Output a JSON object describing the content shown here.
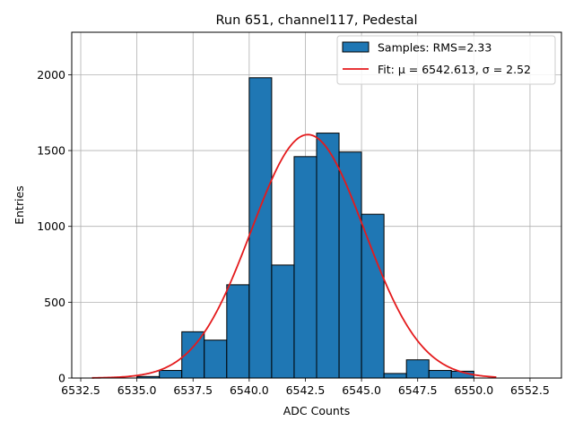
{
  "chart_data": {
    "type": "bar",
    "title": "Run 651, channel117, Pedestal",
    "xlabel": "ADC Counts",
    "ylabel": "Entries",
    "xlim": [
      6532.1,
      6553.9
    ],
    "ylim": [
      0,
      2280
    ],
    "xticks": [
      6532.5,
      6535.0,
      6537.5,
      6540.0,
      6542.5,
      6545.0,
      6547.5,
      6550.0,
      6552.5
    ],
    "xtick_labels": [
      "6532.5",
      "6535.0",
      "6537.5",
      "6540.0",
      "6542.5",
      "6545.0",
      "6547.5",
      "6550.0",
      "6552.5"
    ],
    "yticks": [
      0,
      500,
      1000,
      1500,
      2000
    ],
    "ytick_labels": [
      "0",
      "500",
      "1000",
      "1500",
      "2000"
    ],
    "grid": true,
    "legend": "top-right",
    "histogram": {
      "name": "Samples: RMS=2.33",
      "color": "#1f77b4",
      "edgecolor": "#000000",
      "bin_edges": [
        6535,
        6536,
        6537,
        6538,
        6539,
        6540,
        6541,
        6542,
        6543,
        6544,
        6545,
        6546,
        6547,
        6548,
        6549,
        6550,
        6551
      ],
      "counts": [
        10,
        50,
        305,
        250,
        615,
        1980,
        745,
        1460,
        1615,
        1490,
        1080,
        30,
        120,
        50,
        45,
        0
      ]
    },
    "fit": {
      "name_prefix": "Fit: ",
      "name_symbols": "μ = 6542.613, σ = 2.52",
      "color": "#e41a1c",
      "mu": 6542.613,
      "sigma": 2.52,
      "amplitude": 1605,
      "x_range": [
        6533,
        6551
      ]
    }
  }
}
